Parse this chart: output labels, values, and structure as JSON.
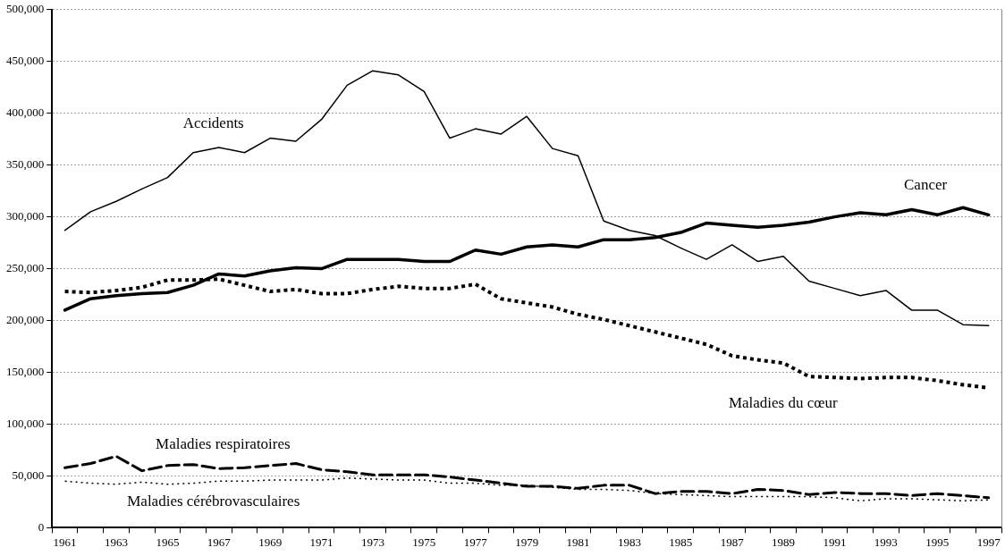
{
  "chart_data": {
    "type": "line",
    "categories": [
      "1961",
      null,
      "1963",
      null,
      "1965",
      null,
      "1967",
      null,
      "1969",
      null,
      "1971",
      null,
      "1973",
      null,
      "1975",
      null,
      "1977",
      null,
      "1979",
      null,
      "1981",
      null,
      "1983",
      null,
      "1985",
      null,
      "1987",
      null,
      "1989",
      null,
      "1991",
      null,
      "1993",
      null,
      "1995",
      null,
      "1997"
    ],
    "ylim": [
      0,
      500000
    ],
    "yticks": [
      {
        "value": 0,
        "label": "0"
      },
      {
        "value": 50000,
        "label": "50,000"
      },
      {
        "value": 100000,
        "label": "100,000"
      },
      {
        "value": 150000,
        "label": "150,000"
      },
      {
        "value": 200000,
        "label": "200,000"
      },
      {
        "value": 250000,
        "label": "250,000"
      },
      {
        "value": 300000,
        "label": "300,000"
      },
      {
        "value": 350000,
        "label": "350,000"
      },
      {
        "value": 400000,
        "label": "400,000"
      },
      {
        "value": 450000,
        "label": "450,000"
      },
      {
        "value": 500000,
        "label": "500,000"
      }
    ],
    "grid": "y",
    "legend": false,
    "marker": "none",
    "series": [
      {
        "name": "Accidents",
        "color": "#000000",
        "line_style": "solid",
        "values": [
          287000,
          305000,
          315000,
          327000,
          338000,
          362000,
          367000,
          362000,
          376000,
          373000,
          394000,
          427000,
          441000,
          437000,
          421000,
          376000,
          385000,
          380000,
          397000,
          366000,
          359000,
          296000,
          287000,
          282000,
          270000,
          259000,
          273000,
          257000,
          262000,
          238000,
          231000,
          224000,
          229000,
          210000,
          210000,
          196000,
          195000
        ]
      },
      {
        "name": "Cancer",
        "color": "#000000",
        "line_style": "solid",
        "values": [
          210000,
          221000,
          224000,
          226000,
          227000,
          234000,
          245000,
          243000,
          248000,
          251000,
          250000,
          259000,
          259000,
          259000,
          257000,
          257000,
          268000,
          264000,
          271000,
          273000,
          271000,
          278000,
          278000,
          280000,
          285000,
          294000,
          292000,
          290000,
          292000,
          295000,
          300000,
          304000,
          302000,
          307000,
          302000,
          309000,
          302000
        ]
      },
      {
        "name": "Maladies du cœur",
        "color": "#000000",
        "line_style": "dotted",
        "values": [
          228000,
          227000,
          229000,
          232000,
          239000,
          239000,
          240000,
          234000,
          228000,
          230000,
          226000,
          226000,
          230000,
          233000,
          231000,
          231000,
          235000,
          221000,
          217000,
          213000,
          206000,
          201000,
          195000,
          189000,
          183000,
          177000,
          166000,
          162000,
          159000,
          146000,
          145000,
          144000,
          145000,
          145000,
          142000,
          138000,
          135000
        ]
      },
      {
        "name": "Maladies respiratoires",
        "color": "#000000",
        "line_style": "dashed",
        "values": [
          58000,
          62000,
          69000,
          55000,
          60000,
          61000,
          57000,
          58000,
          60000,
          62000,
          56000,
          54000,
          51000,
          51000,
          51000,
          49000,
          46000,
          43000,
          40000,
          40000,
          38000,
          41000,
          41000,
          33000,
          35000,
          35000,
          33000,
          37000,
          36000,
          32000,
          34000,
          33000,
          33000,
          31000,
          33000,
          31000,
          29000
        ]
      },
      {
        "name": "Maladies cérébrovasculaires",
        "color": "#000000",
        "line_style": "dotted",
        "values": [
          45000,
          43000,
          42000,
          44000,
          42000,
          43000,
          45000,
          45000,
          46000,
          46000,
          46000,
          48000,
          47000,
          46000,
          46000,
          43000,
          43000,
          41000,
          41000,
          39000,
          37000,
          37000,
          36000,
          33000,
          32000,
          31000,
          30000,
          30000,
          30000,
          30000,
          29000,
          26000,
          28000,
          28000,
          27000,
          26000,
          27000
        ]
      }
    ]
  }
}
